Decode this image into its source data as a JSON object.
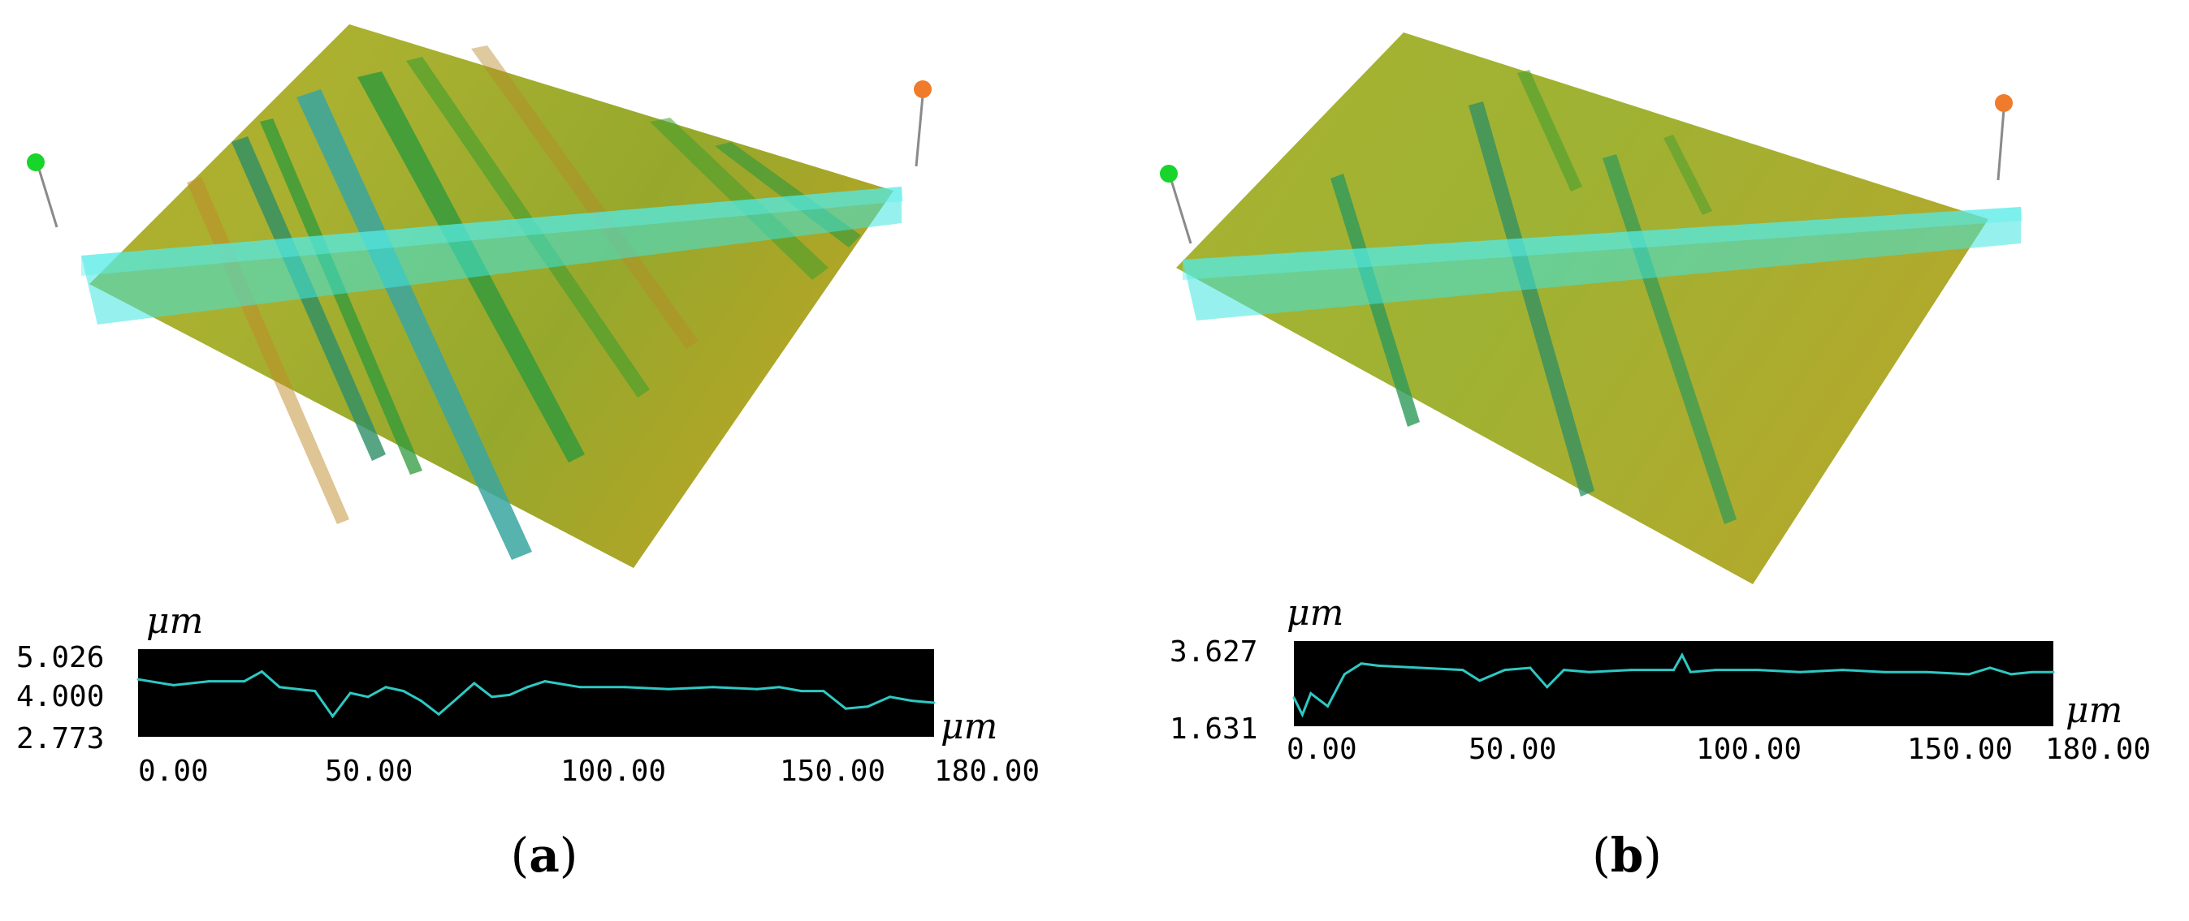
{
  "colors": {
    "surface_yellow": "#b7b22a",
    "surface_green": "#3f9e2e",
    "surface_teal": "#3aa6a0",
    "scan_band": "#3fe6e0",
    "marker_left": "#17d52a",
    "marker_right": "#f07b2a",
    "profile_bg": "#000000",
    "profile_line": "#2ec9c4"
  },
  "panels": [
    {
      "id": "a",
      "caption_letter": "a",
      "profile": {
        "y_unit": "μm",
        "x_unit": "μm",
        "y_ticks": [
          "5.026",
          "4.000",
          "2.773"
        ],
        "x_ticks": [
          "0.00",
          "50.00",
          "100.00",
          "150.00",
          "180.00"
        ]
      }
    },
    {
      "id": "b",
      "caption_letter": "b",
      "profile": {
        "y_unit": "μm",
        "x_unit": "μm",
        "y_ticks": [
          "3.627",
          "1.631"
        ],
        "x_ticks": [
          "0.00",
          "50.00",
          "100.00",
          "150.00",
          "180.00"
        ]
      }
    }
  ],
  "chart_data": [
    {
      "type": "line",
      "title": "",
      "xlabel": "μm",
      "ylabel": "μm",
      "xlim": [
        0,
        180
      ],
      "ylim": [
        2.773,
        5.026
      ],
      "x": [
        0,
        8,
        16,
        24,
        28,
        32,
        40,
        44,
        48,
        52,
        56,
        60,
        64,
        68,
        72,
        76,
        80,
        84,
        88,
        92,
        100,
        110,
        120,
        130,
        140,
        145,
        150,
        155,
        160,
        165,
        170,
        175,
        180
      ],
      "series": [
        {
          "values": [
            4.25,
            4.1,
            4.2,
            4.2,
            4.45,
            4.05,
            3.95,
            3.3,
            3.9,
            3.8,
            4.05,
            3.95,
            3.7,
            3.35,
            3.75,
            4.15,
            3.8,
            3.85,
            4.05,
            4.2,
            4.05,
            4.05,
            4.0,
            4.05,
            4.0,
            4.05,
            3.95,
            3.95,
            3.5,
            3.55,
            3.8,
            3.7,
            3.65
          ]
        }
      ]
    },
    {
      "type": "line",
      "title": "",
      "xlabel": "μm",
      "ylabel": "μm",
      "xlim": [
        0,
        180
      ],
      "ylim": [
        1.631,
        3.627
      ],
      "x": [
        0,
        2,
        4,
        8,
        12,
        16,
        20,
        30,
        40,
        44,
        50,
        56,
        60,
        64,
        70,
        80,
        90,
        92,
        94,
        100,
        110,
        120,
        130,
        140,
        150,
        160,
        165,
        170,
        175,
        180
      ],
      "series": [
        {
          "values": [
            2.3,
            1.9,
            2.4,
            2.1,
            2.85,
            3.1,
            3.05,
            3.0,
            2.95,
            2.7,
            2.95,
            3.0,
            2.55,
            2.95,
            2.9,
            2.95,
            2.95,
            3.3,
            2.9,
            2.95,
            2.95,
            2.9,
            2.95,
            2.9,
            2.9,
            2.85,
            3.0,
            2.85,
            2.9,
            2.9
          ]
        }
      ]
    }
  ]
}
